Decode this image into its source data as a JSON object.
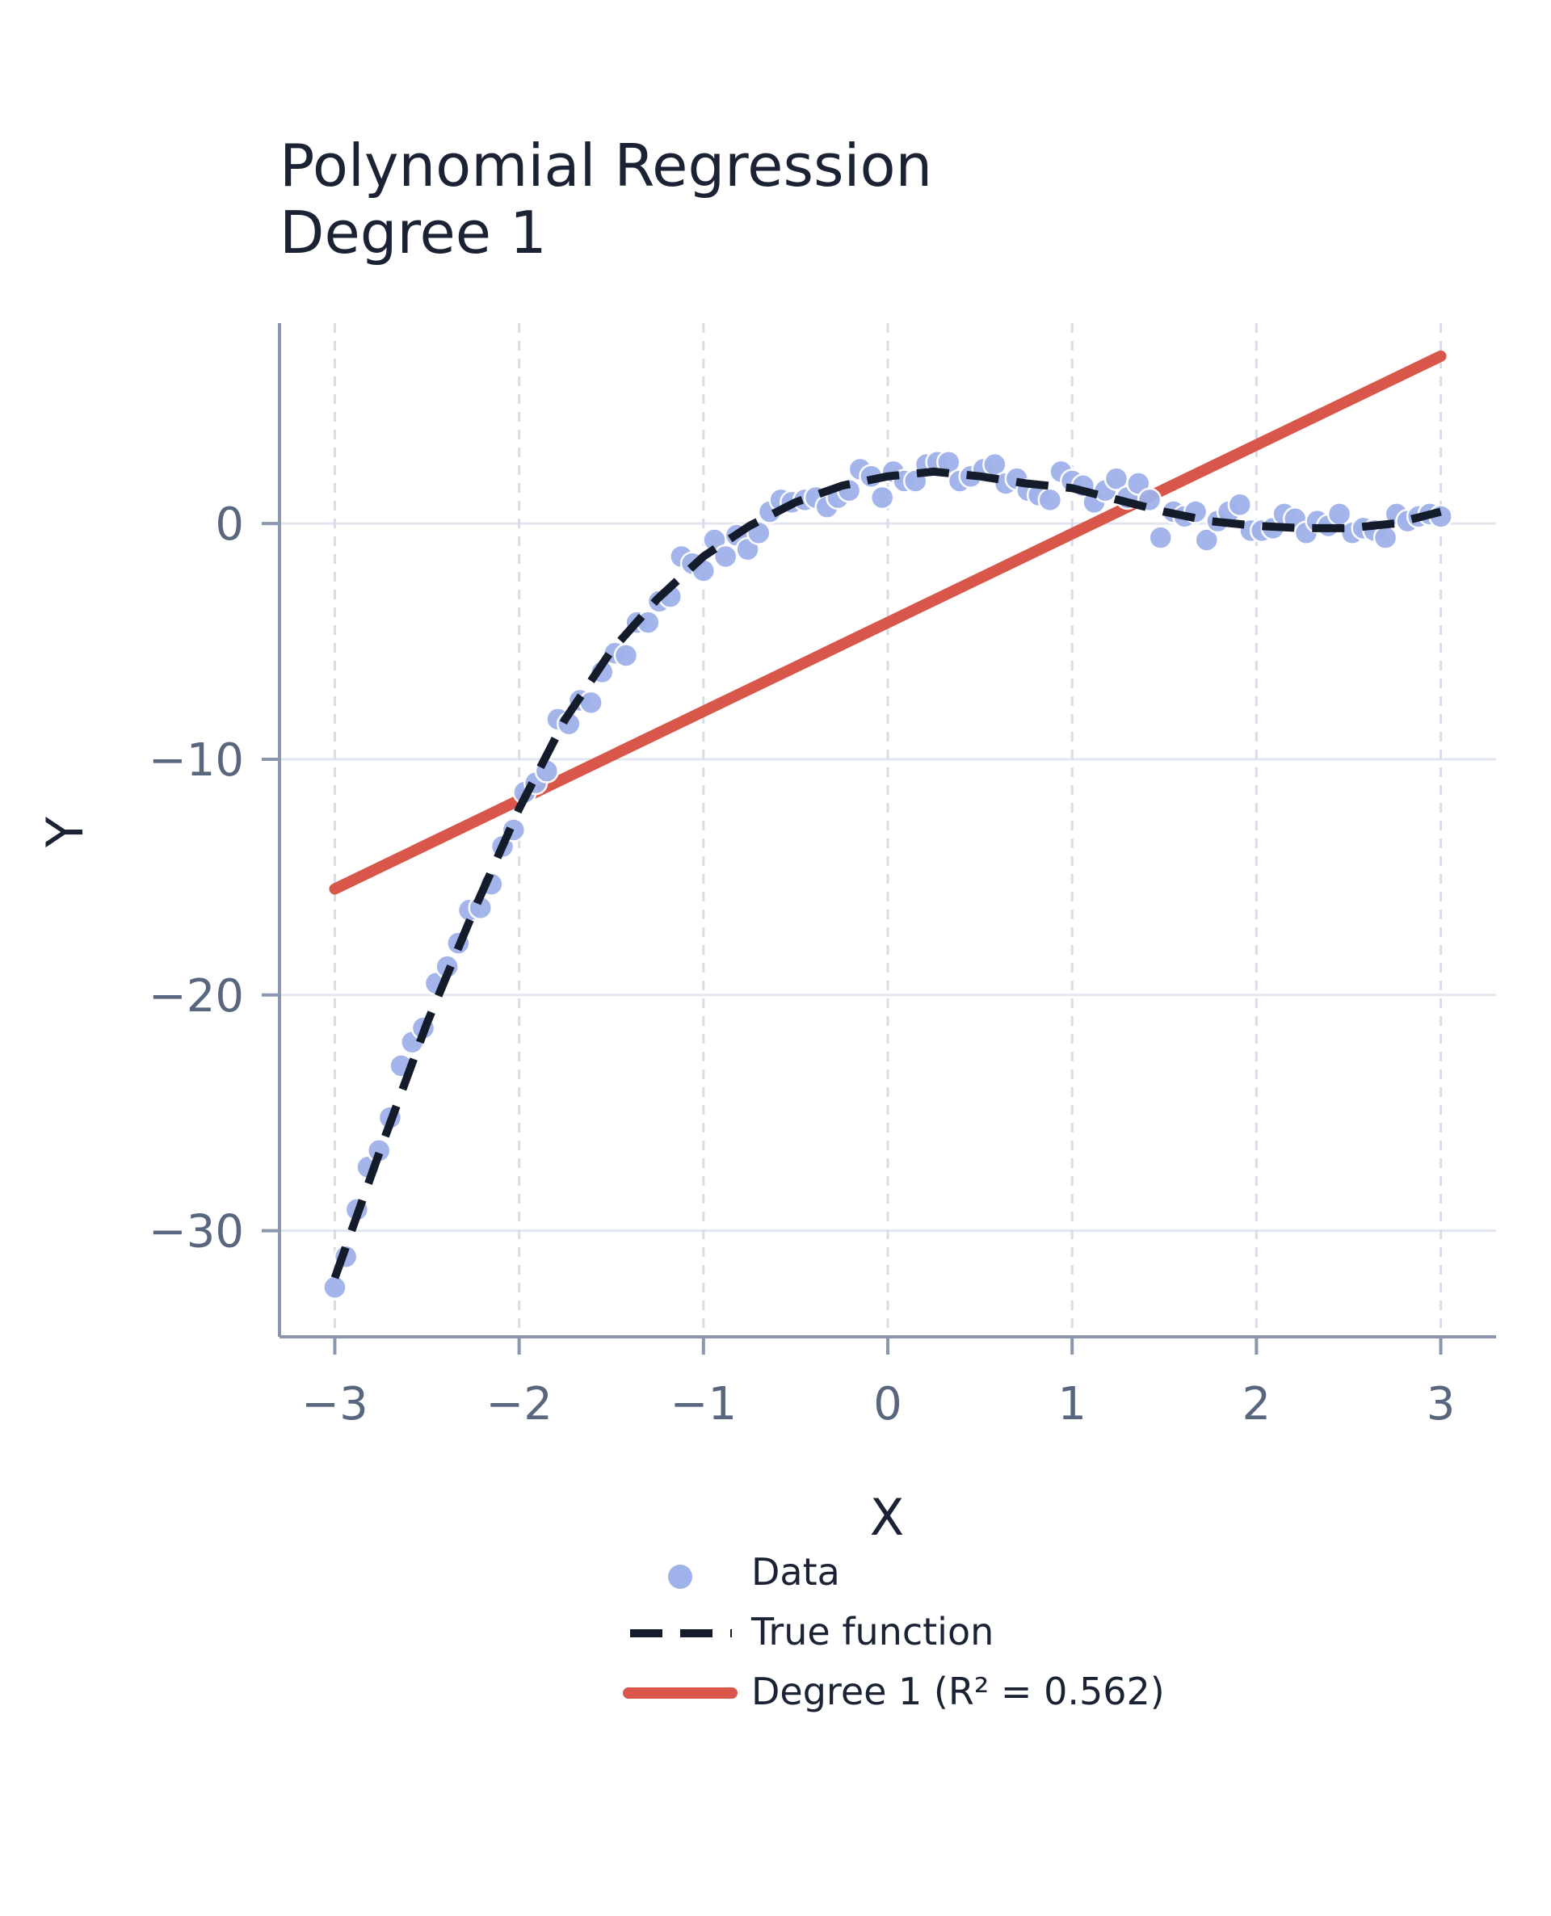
{
  "chart_data": {
    "type": "scatter",
    "title": "Polynomial Regression",
    "subtitle": "Degree 1",
    "xlabel": "X",
    "ylabel": "Y",
    "xlim": [
      -3.3,
      3.3
    ],
    "ylim": [
      -34.5,
      8.5
    ],
    "xticks": [
      -3,
      -2,
      -1,
      0,
      1,
      2,
      3
    ],
    "xtick_labels": [
      "−3",
      "−2",
      "−1",
      "0",
      "1",
      "2",
      "3"
    ],
    "yticks": [
      -30,
      -20,
      -10,
      0
    ],
    "ytick_labels": [
      "−30",
      "−20",
      "−10",
      "0"
    ],
    "grid": true,
    "legend_position": "bottom-center",
    "colors": {
      "data": "#9fb2ea",
      "true_function": "#141b2b",
      "fit": "#d9574a",
      "axis": "#8a97ae",
      "grid": "#e2e7ef",
      "vgrid": "#d8dde6"
    },
    "series": [
      {
        "name": "Data",
        "kind": "scatter",
        "x": [
          -3.0,
          -2.94,
          -2.88,
          -2.82,
          -2.76,
          -2.7,
          -2.64,
          -2.58,
          -2.52,
          -2.45,
          -2.39,
          -2.33,
          -2.27,
          -2.21,
          -2.15,
          -2.09,
          -2.03,
          -1.97,
          -1.91,
          -1.85,
          -1.79,
          -1.73,
          -1.67,
          -1.61,
          -1.55,
          -1.48,
          -1.42,
          -1.36,
          -1.3,
          -1.24,
          -1.18,
          -1.12,
          -1.06,
          -1.0,
          -0.94,
          -0.88,
          -0.82,
          -0.76,
          -0.7,
          -0.64,
          -0.58,
          -0.52,
          -0.45,
          -0.39,
          -0.33,
          -0.27,
          -0.21,
          -0.15,
          -0.09,
          -0.03,
          0.03,
          0.09,
          0.15,
          0.21,
          0.27,
          0.33,
          0.39,
          0.45,
          0.52,
          0.58,
          0.64,
          0.7,
          0.76,
          0.82,
          0.88,
          0.94,
          1.0,
          1.06,
          1.12,
          1.18,
          1.24,
          1.3,
          1.36,
          1.42,
          1.48,
          1.55,
          1.61,
          1.67,
          1.73,
          1.79,
          1.85,
          1.91,
          1.97,
          2.03,
          2.09,
          2.15,
          2.21,
          2.27,
          2.33,
          2.39,
          2.45,
          2.52,
          2.58,
          2.64,
          2.7,
          2.76,
          2.82,
          2.88,
          2.94,
          3.0
        ],
        "y": [
          -32.4,
          -31.1,
          -29.1,
          -27.3,
          -26.6,
          -25.2,
          -23.0,
          -22.0,
          -21.4,
          -19.5,
          -18.8,
          -17.8,
          -16.4,
          -16.3,
          -15.3,
          -13.7,
          -13.0,
          -11.4,
          -11.0,
          -10.5,
          -8.3,
          -8.5,
          -7.5,
          -7.6,
          -6.3,
          -5.5,
          -5.6,
          -4.2,
          -4.2,
          -3.3,
          -3.1,
          -1.4,
          -1.7,
          -2.0,
          -0.7,
          -1.4,
          -0.5,
          -1.1,
          -0.4,
          0.5,
          1.0,
          0.9,
          1.0,
          1.1,
          0.7,
          1.1,
          1.4,
          2.3,
          2.0,
          1.1,
          2.2,
          1.8,
          1.8,
          2.5,
          2.6,
          2.6,
          1.8,
          2.0,
          2.3,
          2.5,
          1.7,
          1.9,
          1.4,
          1.2,
          1.0,
          2.2,
          1.8,
          1.6,
          0.9,
          1.4,
          1.9,
          1.1,
          1.7,
          1.0,
          -0.6,
          0.5,
          0.3,
          0.5,
          -0.7,
          0.1,
          0.5,
          0.8,
          -0.3,
          -0.3,
          -0.2,
          0.4,
          0.2,
          -0.4,
          0.1,
          -0.1,
          0.4,
          -0.4,
          -0.2,
          -0.3,
          -0.6,
          0.4,
          0.1,
          0.3,
          0.4,
          0.3
        ]
      },
      {
        "name": "True function",
        "kind": "line",
        "style": "dashed",
        "x": [
          -3.0,
          -2.75,
          -2.5,
          -2.25,
          -2.0,
          -1.75,
          -1.5,
          -1.25,
          -1.0,
          -0.75,
          -0.5,
          -0.25,
          0.0,
          0.25,
          0.5,
          0.75,
          1.0,
          1.25,
          1.5,
          1.75,
          2.0,
          2.25,
          2.5,
          2.75,
          3.0
        ],
        "y": [
          -32.0,
          -26.5,
          -21.2,
          -16.5,
          -12.1,
          -8.3,
          -5.4,
          -3.2,
          -1.4,
          -0.1,
          0.9,
          1.6,
          2.0,
          2.2,
          2.0,
          1.7,
          1.5,
          1.0,
          0.5,
          0.1,
          -0.1,
          -0.2,
          -0.2,
          0.0,
          0.5
        ]
      },
      {
        "name": "Degree 1 (R² = 0.562)",
        "kind": "line",
        "style": "solid",
        "x": [
          -3.0,
          3.0
        ],
        "y": [
          -15.5,
          7.1
        ]
      }
    ]
  }
}
